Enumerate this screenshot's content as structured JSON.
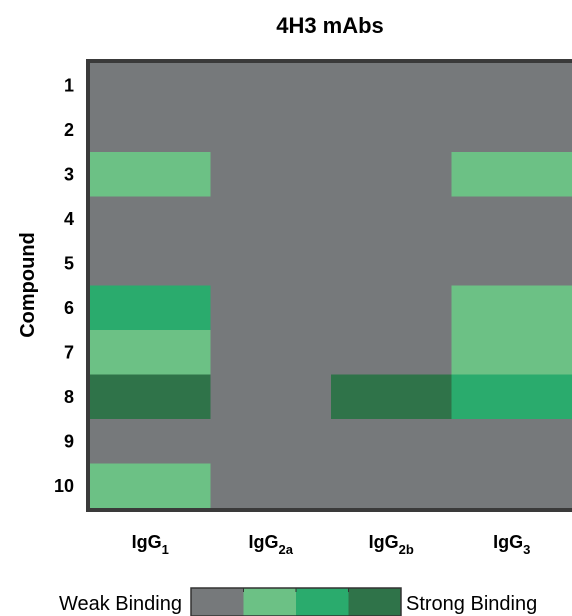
{
  "chart_data": {
    "type": "heatmap",
    "title": "4H3 mAbs",
    "ylabel": "Compound",
    "xlabel": "",
    "rows": [
      "1",
      "2",
      "3",
      "4",
      "5",
      "6",
      "7",
      "8",
      "9",
      "10"
    ],
    "columns": [
      {
        "base": "IgG",
        "sub": "1"
      },
      {
        "base": "IgG",
        "sub": "2a"
      },
      {
        "base": "IgG",
        "sub": "2b"
      },
      {
        "base": "IgG",
        "sub": "3"
      }
    ],
    "levels": [
      {
        "value": 0,
        "color": "#76797b"
      },
      {
        "value": 1,
        "color": "#6cc185"
      },
      {
        "value": 2,
        "color": "#2aab6d"
      },
      {
        "value": 3,
        "color": "#2f7349"
      }
    ],
    "values": [
      [
        0,
        0,
        0,
        0
      ],
      [
        0,
        0,
        0,
        0
      ],
      [
        1,
        0,
        0,
        1
      ],
      [
        0,
        0,
        0,
        0
      ],
      [
        0,
        0,
        0,
        0
      ],
      [
        2,
        0,
        0,
        1
      ],
      [
        1,
        0,
        0,
        1
      ],
      [
        3,
        0,
        3,
        2
      ],
      [
        0,
        0,
        0,
        0
      ],
      [
        1,
        0,
        0,
        0
      ]
    ],
    "legend": {
      "low_label": "Weak Binding",
      "high_label": "Strong Binding",
      "placement": "bottom"
    }
  }
}
